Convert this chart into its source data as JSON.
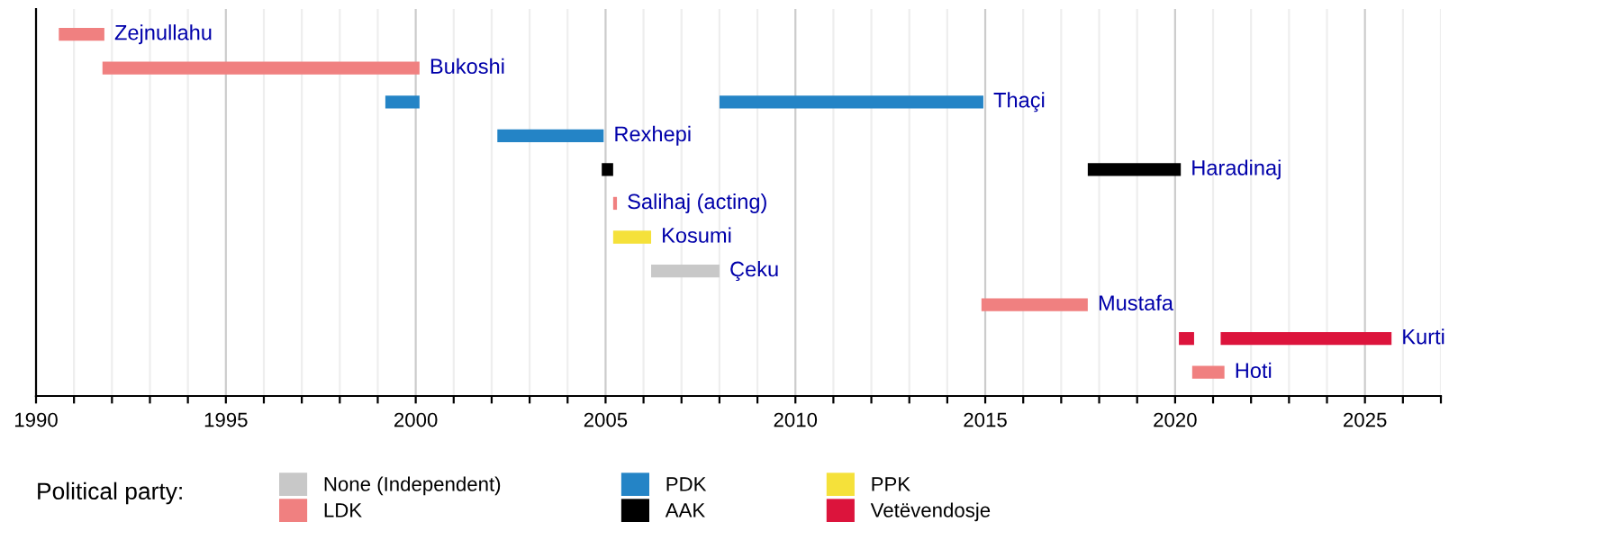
{
  "chart_data": {
    "type": "bar",
    "orientation": "horizontal",
    "legend_title": "Political party:",
    "legend": "bottom",
    "grid": "x",
    "tick_labels": "x",
    "categories": [
      "Zejnullahu",
      "Bukoshi",
      "Thaçi",
      "Rexhepi",
      "Haradinaj",
      "Salihaj (acting)",
      "Kosumi",
      "Çeku",
      "Mustafa",
      "Kurti",
      "Hoti"
    ],
    "xlim": [
      1990,
      2027
    ],
    "xticks": [
      1990,
      {
        "value": 1991,
        "label": null
      },
      {
        "value": 1992,
        "label": null
      },
      {
        "value": 1993,
        "label": null
      },
      {
        "value": 1994,
        "label": null
      },
      1995,
      {
        "value": 1996,
        "label": null
      },
      {
        "value": 1997,
        "label": null
      },
      {
        "value": 1998,
        "label": null
      },
      {
        "value": 1999,
        "label": null
      },
      2000,
      {
        "value": 2001,
        "label": null
      },
      {
        "value": 2002,
        "label": null
      },
      {
        "value": 2003,
        "label": null
      },
      {
        "value": 2004,
        "label": null
      },
      2005,
      {
        "value": 2006,
        "label": null
      },
      {
        "value": 2007,
        "label": null
      },
      {
        "value": 2008,
        "label": null
      },
      {
        "value": 2009,
        "label": null
      },
      2010,
      {
        "value": 2011,
        "label": null
      },
      {
        "value": 2012,
        "label": null
      },
      {
        "value": 2013,
        "label": null
      },
      {
        "value": 2014,
        "label": null
      },
      2015,
      {
        "value": 2016,
        "label": null
      },
      {
        "value": 2017,
        "label": null
      },
      {
        "value": 2018,
        "label": null
      },
      {
        "value": 2019,
        "label": null
      },
      2020,
      {
        "value": 2021,
        "label": null
      },
      {
        "value": 2022,
        "label": null
      },
      {
        "value": 2023,
        "label": null
      },
      {
        "value": 2024,
        "label": null
      },
      2025,
      {
        "value": 2026,
        "label": null
      },
      {
        "value": 2027,
        "label": null
      }
    ],
    "series": [
      {
        "name": "None (Independent)",
        "color": "#c8c8c8",
        "base": [
          null,
          null,
          null,
          null,
          null,
          null,
          null,
          2006.2,
          null,
          null,
          null
        ],
        "values": [
          null,
          null,
          null,
          null,
          null,
          null,
          null,
          1.8,
          null,
          null,
          null
        ]
      },
      {
        "name": "LDK",
        "color": "#f08080",
        "base": [
          1990.6,
          1991.75,
          null,
          null,
          null,
          2005.2,
          null,
          null,
          2014.9,
          null,
          2020.45
        ],
        "values": [
          1.2,
          8.35,
          null,
          null,
          null,
          0.1,
          null,
          null,
          2.8,
          null,
          0.85
        ]
      },
      {
        "name": "PDK",
        "color": "#2484c6",
        "base": [
          null,
          null,
          1999.2,
          2002.15,
          null,
          null,
          null,
          null,
          null,
          null,
          null
        ],
        "values": [
          null,
          null,
          0.9,
          2.8,
          null,
          null,
          null,
          null,
          null,
          null,
          null
        ]
      },
      {
        "color": "#2484c6",
        "base": [
          null,
          null,
          2008.0,
          null,
          null,
          null,
          null,
          null,
          null,
          null,
          null
        ],
        "values": [
          null,
          null,
          6.95,
          null,
          null,
          null,
          null,
          null,
          null,
          null,
          null
        ]
      },
      {
        "name": "AAK",
        "color": "#000000",
        "base": [
          null,
          null,
          null,
          null,
          2004.9,
          null,
          null,
          null,
          null,
          null,
          null
        ],
        "values": [
          null,
          null,
          null,
          null,
          0.3,
          null,
          null,
          null,
          null,
          null,
          null
        ]
      },
      {
        "color": "#000000",
        "base": [
          null,
          null,
          null,
          null,
          2017.7,
          null,
          null,
          null,
          null,
          null,
          null
        ],
        "values": [
          null,
          null,
          null,
          null,
          2.45,
          null,
          null,
          null,
          null,
          null,
          null
        ]
      },
      {
        "name": "PPK",
        "color": "#f5e13a",
        "base": [
          null,
          null,
          null,
          null,
          null,
          null,
          2005.2,
          null,
          null,
          null,
          null
        ],
        "values": [
          null,
          null,
          null,
          null,
          null,
          null,
          1.0,
          null,
          null,
          null,
          null
        ]
      },
      {
        "name": "Vetëvendosje",
        "color": "#dc143c",
        "base": [
          null,
          null,
          null,
          null,
          null,
          null,
          null,
          null,
          null,
          2020.1,
          null
        ],
        "values": [
          null,
          null,
          null,
          null,
          null,
          null,
          null,
          null,
          null,
          0.4,
          null
        ]
      },
      {
        "color": "#dc143c",
        "base": [
          null,
          null,
          null,
          null,
          null,
          null,
          null,
          null,
          null,
          2021.2,
          null
        ],
        "values": [
          null,
          null,
          null,
          null,
          null,
          null,
          null,
          null,
          null,
          4.5,
          null
        ]
      }
    ]
  }
}
